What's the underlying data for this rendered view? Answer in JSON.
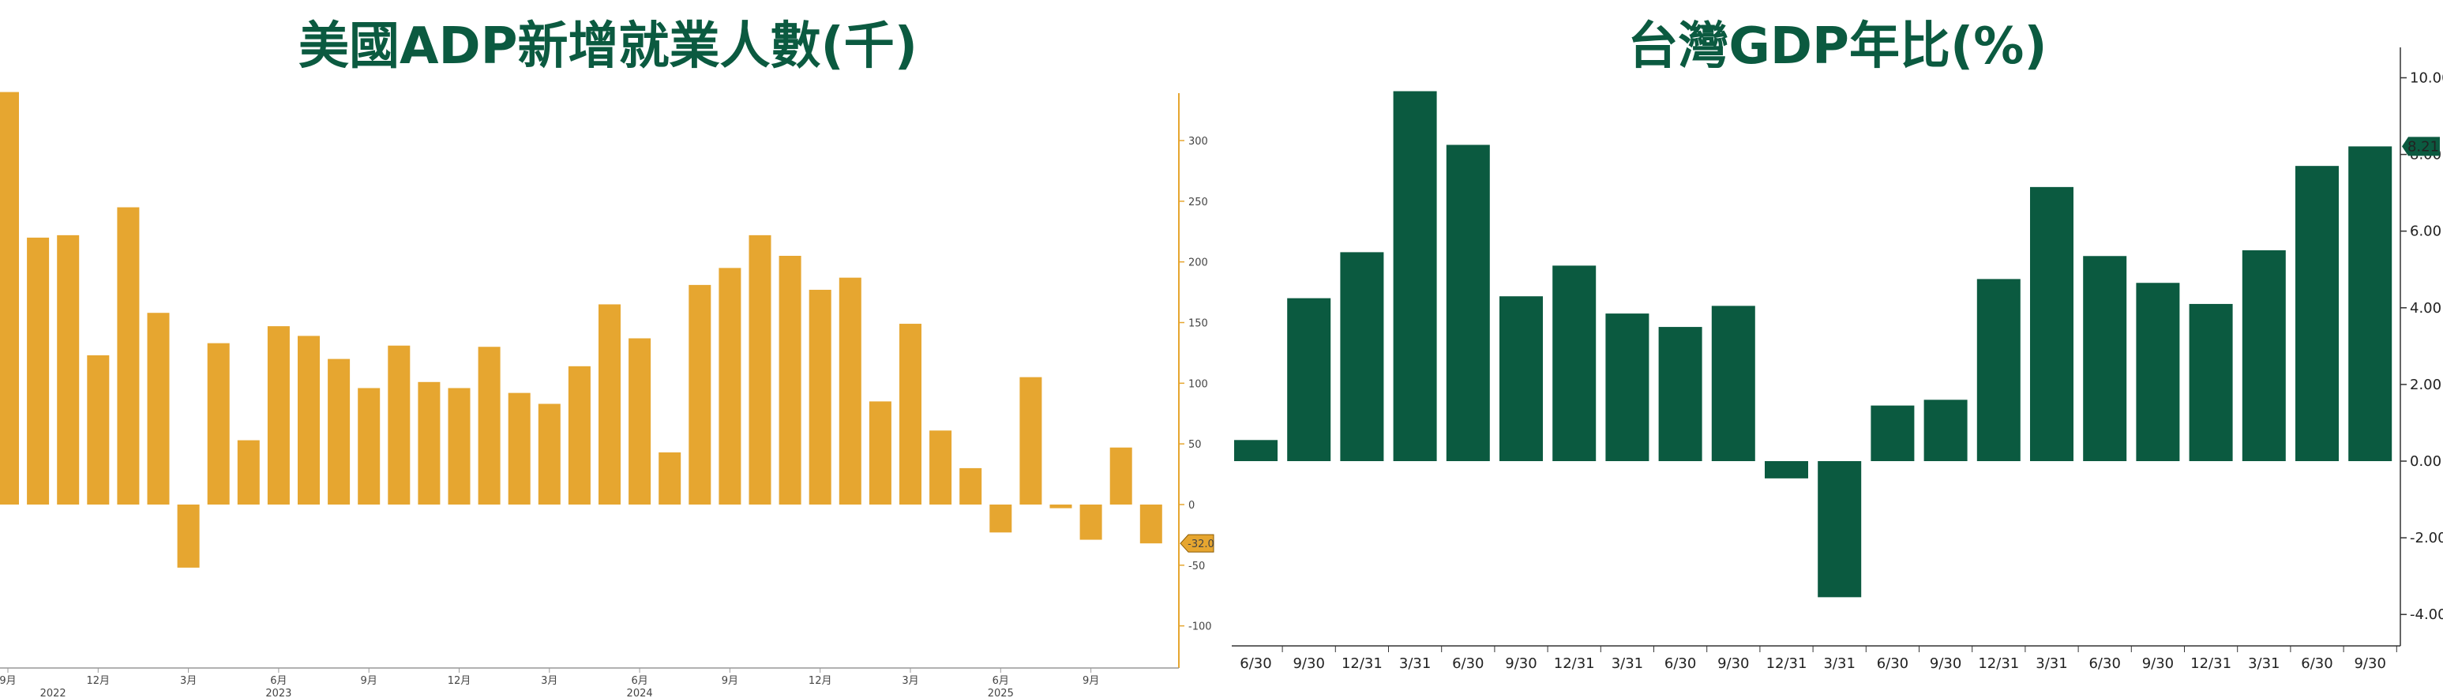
{
  "chart_data": [
    {
      "type": "bar",
      "title": "美國ADP新增就業人數(千)",
      "color": "#e6a630",
      "ylim": [
        -140,
        340
      ],
      "yticks": [
        300,
        250,
        200,
        150,
        100,
        50,
        0,
        -50,
        -100
      ],
      "last_value_label": "-32.0",
      "month_ticks": [
        "9月",
        "12月",
        "3月",
        "6月",
        "9月",
        "12月",
        "3月",
        "6月",
        "9月",
        "12月",
        "3月",
        "6月",
        "9月"
      ],
      "month_tick_bar_index": [
        0,
        3,
        6,
        9,
        12,
        15,
        18,
        21,
        24,
        27,
        30,
        33,
        36
      ],
      "year_ticks": [
        "2022",
        "2023",
        "2024",
        "2025"
      ],
      "year_tick_bar_index": [
        1.5,
        9,
        21,
        33
      ],
      "values": [
        340,
        220,
        222,
        123,
        245,
        158,
        -52,
        133,
        53,
        147,
        139,
        120,
        96,
        131,
        101,
        96,
        130,
        92,
        83,
        114,
        165,
        137,
        43,
        181,
        195,
        222,
        205,
        177,
        187,
        85,
        149,
        61,
        30,
        -23,
        105,
        -3,
        -29,
        47,
        -32
      ]
    },
    {
      "type": "bar",
      "title": "台灣GDP年比(%)",
      "color": "#0b5a40",
      "ylim": [
        -4.8,
        10.8
      ],
      "yticks": [
        "10.00",
        "8.00",
        "6.00",
        "4.00",
        "2.00",
        "0.00",
        "-2.00",
        "-4.00"
      ],
      "last_value_label": "8.21",
      "categories": [
        "6/30",
        "9/30",
        "12/31",
        "3/31",
        "6/30",
        "9/30",
        "12/31",
        "3/31",
        "6/30",
        "9/30",
        "12/31",
        "3/31",
        "6/30",
        "9/30",
        "12/31",
        "3/31",
        "6/30",
        "9/30",
        "12/31",
        "3/31",
        "6/30",
        "9/30"
      ],
      "values": [
        0.55,
        4.25,
        5.45,
        9.65,
        8.25,
        4.3,
        5.1,
        3.85,
        3.5,
        4.05,
        -0.45,
        -3.55,
        1.45,
        1.6,
        4.75,
        7.15,
        5.35,
        4.65,
        4.1,
        5.5,
        7.7,
        8.21
      ]
    }
  ]
}
